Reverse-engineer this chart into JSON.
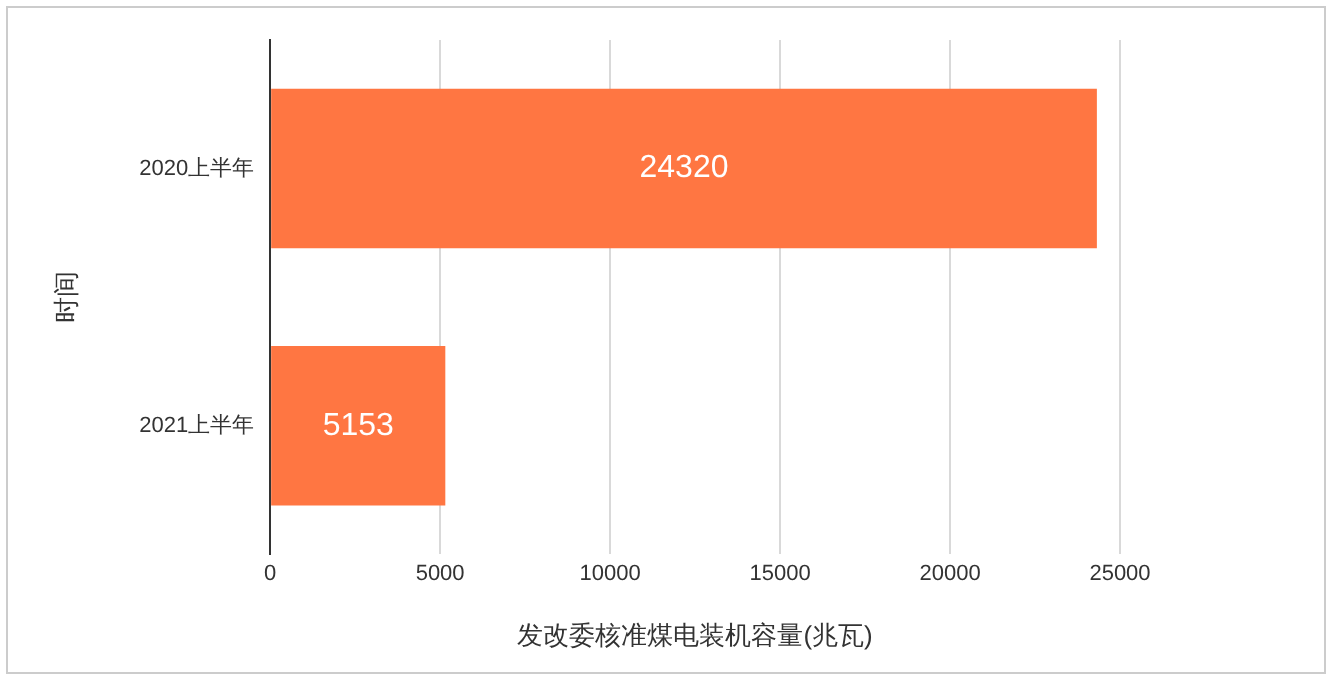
{
  "chart_data": {
    "type": "bar",
    "orientation": "horizontal",
    "xlabel": "发改委核准煤电装机容量(兆瓦)",
    "ylabel": "时间",
    "categories": [
      "2020上半年",
      "2021上半年"
    ],
    "values": [
      24320,
      5153
    ],
    "color": "#ff7642",
    "xlim": [
      0,
      25000
    ],
    "xticks": [
      0,
      5000,
      10000,
      15000,
      20000,
      25000
    ],
    "grid": "x",
    "data_labels": true,
    "legend": false
  }
}
